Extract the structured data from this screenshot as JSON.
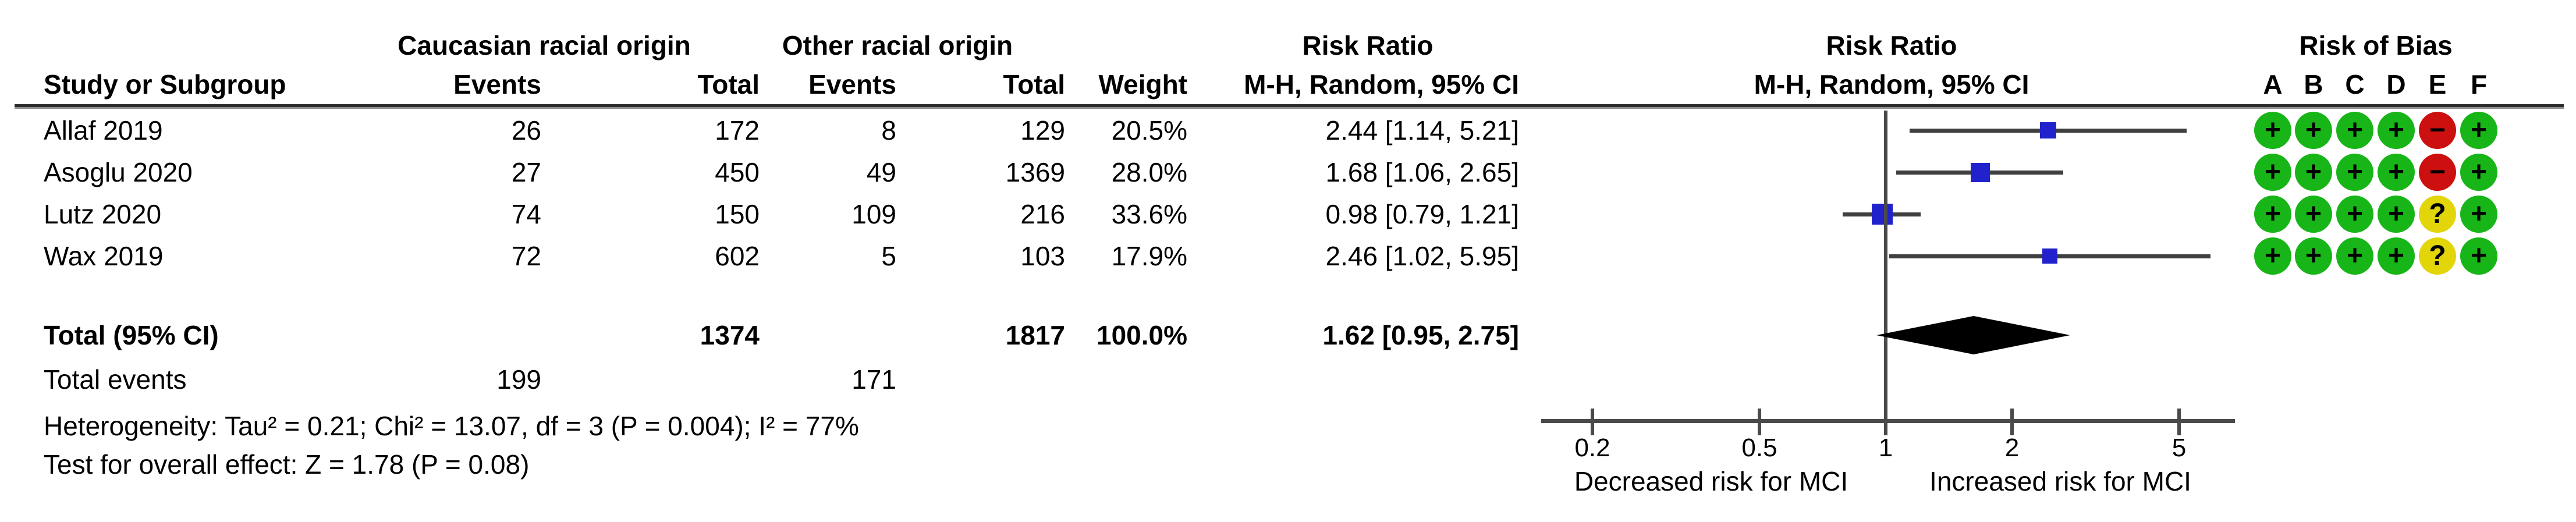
{
  "colors": {
    "square_blue": "#2222CC",
    "ci_line": "#3f3f3f",
    "diamond": "#000000",
    "axis_line": "#4a4a4a",
    "rob_plus_green": "#17B517",
    "rob_minus_red": "#CC0F0F",
    "rob_question_yellow": "#E2D60B",
    "text": "#000000"
  },
  "header": {
    "group1": "Caucasian racial origin",
    "group2": "Other racial origin",
    "risk_ratio_col": "Risk Ratio",
    "method_col": "M-H, Random, 95% CI",
    "risk_ratio_plot": "Risk Ratio",
    "method_plot": "M-H, Random, 95% CI",
    "study": "Study or Subgroup",
    "events1": "Events",
    "total1": "Total",
    "events2": "Events",
    "total2": "Total",
    "weight": "Weight",
    "risk_of_bias": "Risk of Bias",
    "rob_letters": [
      "A",
      "B",
      "C",
      "D",
      "E",
      "F"
    ]
  },
  "studies": [
    {
      "name": "Allaf 2019",
      "events1": "26",
      "total1": "172",
      "events2": "8",
      "total2": "129",
      "weight": "20.5%",
      "rr_text": "2.44 [1.14, 5.21]",
      "rob": [
        "+",
        "+",
        "+",
        "+",
        "−",
        "+"
      ]
    },
    {
      "name": "Asoglu 2020",
      "events1": "27",
      "total1": "450",
      "events2": "49",
      "total2": "1369",
      "weight": "28.0%",
      "rr_text": "1.68 [1.06, 2.65]",
      "rob": [
        "+",
        "+",
        "+",
        "+",
        "−",
        "+"
      ]
    },
    {
      "name": "Lutz 2020",
      "events1": "74",
      "total1": "150",
      "events2": "109",
      "total2": "216",
      "weight": "33.6%",
      "rr_text": "0.98 [0.79, 1.21]",
      "rob": [
        "+",
        "+",
        "+",
        "+",
        "?",
        "+"
      ]
    },
    {
      "name": "Wax 2019",
      "events1": "72",
      "total1": "602",
      "events2": "5",
      "total2": "103",
      "weight": "17.9%",
      "rr_text": "2.46 [1.02, 5.95]",
      "rob": [
        "+",
        "+",
        "+",
        "+",
        "?",
        "+"
      ]
    }
  ],
  "total_row": {
    "label": "Total (95% CI)",
    "total1": "1374",
    "total2": "1817",
    "weight": "100.0%",
    "rr_text": "1.62 [0.95, 2.75]"
  },
  "total_events": {
    "label": "Total events",
    "events1": "199",
    "events2": "171"
  },
  "footnotes": {
    "heterogeneity": "Heterogeneity: Tau² = 0.21; Chi² = 13.07, df = 3 (P = 0.004); I² = 77%",
    "overall_effect": "Test for overall effect: Z = 1.78 (P = 0.08)"
  },
  "axis": {
    "tick_labels": [
      "0.2",
      "0.5",
      "1",
      "2",
      "5"
    ],
    "left_label": "Decreased risk for MCI",
    "right_label": "Increased risk for MCI"
  },
  "chart_data": {
    "type": "forest",
    "x_scale": "log",
    "x_ticks": [
      0.2,
      0.5,
      1,
      2,
      5
    ],
    "effect_measure": "Risk Ratio (M-H, Random, 95% CI)",
    "studies": [
      {
        "name": "Allaf 2019",
        "events_caucasian": 26,
        "total_caucasian": 172,
        "events_other": 8,
        "total_other": 129,
        "rr": 2.44,
        "ci_low": 1.14,
        "ci_high": 5.21,
        "weight_pct": 20.5
      },
      {
        "name": "Asoglu 2020",
        "events_caucasian": 27,
        "total_caucasian": 450,
        "events_other": 49,
        "total_other": 1369,
        "rr": 1.68,
        "ci_low": 1.06,
        "ci_high": 2.65,
        "weight_pct": 28.0
      },
      {
        "name": "Lutz 2020",
        "events_caucasian": 74,
        "total_caucasian": 150,
        "events_other": 109,
        "total_other": 216,
        "rr": 0.98,
        "ci_low": 0.79,
        "ci_high": 1.21,
        "weight_pct": 33.6
      },
      {
        "name": "Wax 2019",
        "events_caucasian": 72,
        "total_caucasian": 602,
        "events_other": 5,
        "total_other": 103,
        "rr": 2.46,
        "ci_low": 1.02,
        "ci_high": 5.95,
        "weight_pct": 17.9
      }
    ],
    "overall": {
      "label": "Total (95% CI)",
      "rr": 1.62,
      "ci_low": 0.95,
      "ci_high": 2.75,
      "total_caucasian": 1374,
      "total_other": 1817,
      "total_events_caucasian": 199,
      "total_events_other": 171,
      "weight_pct": 100.0
    },
    "heterogeneity": {
      "tau2": 0.21,
      "chi2": 13.07,
      "df": 3,
      "p": 0.004,
      "i2_pct": 77
    },
    "overall_effect_test": {
      "z": 1.78,
      "p": 0.08
    },
    "axis_annotations": {
      "left": "Decreased risk for MCI",
      "right": "Increased risk for MCI"
    },
    "risk_of_bias_domains": [
      "A",
      "B",
      "C",
      "D",
      "E",
      "F"
    ],
    "risk_of_bias": [
      [
        "+",
        "+",
        "+",
        "+",
        "−",
        "+"
      ],
      [
        "+",
        "+",
        "+",
        "+",
        "−",
        "+"
      ],
      [
        "+",
        "+",
        "+",
        "+",
        "?",
        "+"
      ],
      [
        "+",
        "+",
        "+",
        "+",
        "?",
        "+"
      ]
    ]
  }
}
